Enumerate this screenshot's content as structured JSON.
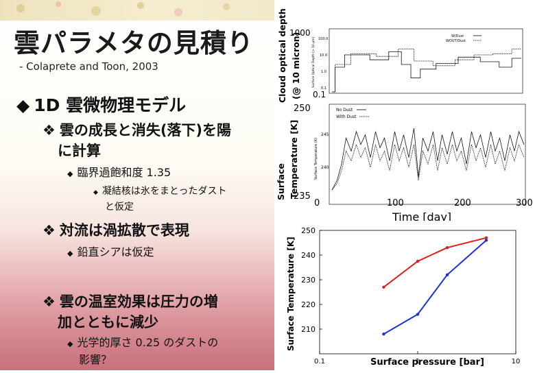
{
  "slide": {
    "title": "雲パラメタの見積り",
    "subtitle": "- Colaprete and Toon, 2003"
  },
  "bullets": {
    "l1_model": "1D 雲微物理モデル",
    "l2_growth_line1": "雲の成長と消失(落下)を陽",
    "l2_growth_line2": "に計算",
    "l3_supersat": "臨界過飽和度 1.35",
    "l4_nuclei_line1": "凝結核は氷をまとったダスト",
    "l4_nuclei_line2": "と仮定",
    "l2_convection": "対流は渦拡散で表現",
    "l3_shear": "鉛直シアは仮定",
    "l2_greenhouse_line1": "雲の温室効果は圧力の増",
    "l2_greenhouse_line2": "加とともに減少",
    "l3_optical_line1": "光学的厚さ 0.25 のダストの",
    "l3_optical_line2": "影響？"
  },
  "icons": {
    "level1": "diamond-bullet-icon",
    "level2": "four-diamond-bullet-icon",
    "level3": "small-diamond-bullet-icon",
    "level4": "tiny-diamond-bullet-icon"
  },
  "colors": {
    "red_series": "#e21b1b",
    "blue_series": "#1b2fe0",
    "bg_pink": "#d88f96"
  },
  "chart_data": [
    {
      "type": "line",
      "ylabel_line1": "Cloud optical depth",
      "ylabel_line2": "(@ 10 micron)",
      "inner_ylabel": "Surface Optical Depth (> 10 µm)",
      "yscale": "log",
      "ylim": [
        0.1,
        1000
      ],
      "yticks": [
        "1000",
        "0.1"
      ],
      "inner_yticks": [
        "100.0",
        "10.0",
        "1.0",
        "0.1"
      ],
      "xlim": [
        0,
        300
      ],
      "legend_placement": "top-right",
      "series": [
        {
          "name": "W/Dust",
          "style": "solid",
          "x": [
            0,
            5,
            5,
            20,
            20,
            60,
            60,
            90,
            90,
            110,
            110,
            125,
            125,
            140,
            140,
            165,
            165,
            200,
            200,
            235,
            235,
            265,
            265,
            285,
            285,
            300
          ],
          "values": [
            0.1,
            0.1,
            4,
            4,
            25,
            25,
            12,
            12,
            40,
            40,
            6,
            6,
            0.8,
            0.8,
            3,
            3,
            7,
            7,
            18,
            18,
            9,
            9,
            4,
            4,
            15,
            15
          ]
        },
        {
          "name": "WOUT/Dust",
          "style": "dotted",
          "x": [
            0,
            5,
            5,
            30,
            30,
            70,
            70,
            105,
            105,
            130,
            130,
            160,
            160,
            195,
            195,
            225,
            225,
            255,
            255,
            285,
            285,
            300
          ],
          "values": [
            0.1,
            0.1,
            6,
            6,
            30,
            30,
            20,
            20,
            60,
            60,
            10,
            10,
            5,
            5,
            12,
            12,
            25,
            25,
            30,
            30,
            60,
            60
          ]
        }
      ]
    },
    {
      "type": "line",
      "ylabel_line1": "Surface",
      "ylabel_line2": "Temperature [K]",
      "inner_ylabel": "Surface Temperature (K)",
      "xlabel": "Time [day]",
      "ylim": [
        235,
        250
      ],
      "yticks": [
        235,
        250
      ],
      "inner_yticks": [
        240,
        245
      ],
      "xlim": [
        0,
        300
      ],
      "xticks": [
        0,
        100,
        200,
        300
      ],
      "legend_placement": "top-left",
      "series": [
        {
          "name": "No Dust",
          "style": "solid",
          "x": [
            0,
            8,
            15,
            22,
            30,
            38,
            45,
            52,
            60,
            68,
            75,
            82,
            90,
            98,
            105,
            112,
            120,
            128,
            135,
            142,
            150,
            158,
            165,
            172,
            180,
            188,
            195,
            202,
            210,
            218,
            225,
            232,
            240,
            248,
            255,
            262,
            270,
            278,
            285,
            292,
            300
          ],
          "values": [
            237,
            238.5,
            241,
            245,
            243,
            246,
            244,
            245.5,
            242,
            246,
            243.5,
            245,
            241.5,
            246,
            243,
            245.5,
            242,
            246.5,
            239,
            245,
            243,
            246,
            241.5,
            245.5,
            242.5,
            246,
            243,
            245,
            241,
            246,
            243.5,
            245.5,
            242,
            246,
            243,
            245,
            241.5,
            245.5,
            243,
            246,
            244
          ]
        },
        {
          "name": "With Dust",
          "style": "dotted",
          "x": [
            0,
            8,
            15,
            22,
            30,
            38,
            45,
            52,
            60,
            68,
            75,
            82,
            90,
            98,
            105,
            112,
            120,
            128,
            135,
            142,
            150,
            158,
            165,
            172,
            180,
            188,
            195,
            202,
            210,
            218,
            225,
            232,
            240,
            248,
            255,
            262,
            270,
            278,
            285,
            292,
            300
          ],
          "values": [
            237,
            238,
            240,
            243,
            241.5,
            244,
            242,
            243.5,
            240.5,
            244,
            241.5,
            243,
            240,
            244,
            241.5,
            243.5,
            240.5,
            244,
            238.5,
            243,
            241,
            244,
            240,
            243.5,
            241,
            244,
            241.5,
            243,
            240,
            244,
            241.5,
            243.5,
            240.5,
            244,
            241,
            243,
            240,
            243.5,
            241.5,
            244,
            242
          ]
        }
      ]
    },
    {
      "type": "line",
      "xlabel": "Surface pressure [bar]",
      "ylabel": "Surface Temperature [K]",
      "xscale": "log",
      "xlim": [
        0.1,
        10
      ],
      "ylim": [
        200,
        250
      ],
      "xticks": [
        "0.1",
        "1",
        "10"
      ],
      "yticks": [
        210,
        220,
        230,
        240,
        250
      ],
      "series": [
        {
          "color": "#e21b1b",
          "x": [
            0.45,
            1,
            2,
            5
          ],
          "values": [
            227,
            237.5,
            243,
            247
          ]
        },
        {
          "color": "#1b2fe0",
          "x": [
            0.45,
            1,
            2,
            5
          ],
          "values": [
            208,
            216,
            232,
            246
          ]
        }
      ]
    }
  ]
}
